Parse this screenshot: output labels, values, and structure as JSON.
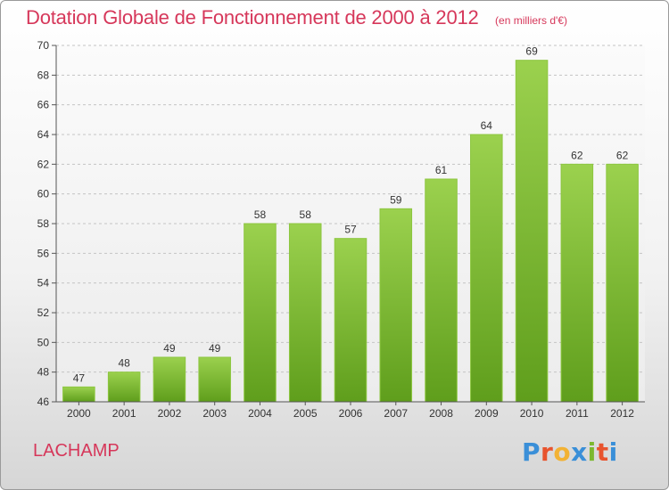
{
  "chart_data": {
    "type": "bar",
    "title": "Dotation Globale de Fonctionnement de 2000 à 2012",
    "unit": "(en milliers d'€)",
    "categories": [
      "2000",
      "2001",
      "2002",
      "2003",
      "2004",
      "2005",
      "2006",
      "2007",
      "2008",
      "2009",
      "2010",
      "2011",
      "2012"
    ],
    "values": [
      47,
      48,
      49,
      49,
      58,
      58,
      57,
      59,
      61,
      64,
      69,
      62,
      62
    ],
    "ylim": [
      46,
      70
    ],
    "yticks": [
      46,
      48,
      50,
      52,
      54,
      56,
      58,
      60,
      62,
      64,
      66,
      68,
      70
    ],
    "grid": true,
    "bar_color": "#7cb82f"
  },
  "commune": "LACHAMP",
  "logo": {
    "letters": [
      "P",
      "r",
      "o",
      "x",
      "i",
      "t",
      "i"
    ],
    "colors": [
      "#3a8fd8",
      "#e8542e",
      "#f2b234",
      "#3a8fd8",
      "#7cb82f",
      "#e8542e",
      "#3a8fd8"
    ]
  }
}
